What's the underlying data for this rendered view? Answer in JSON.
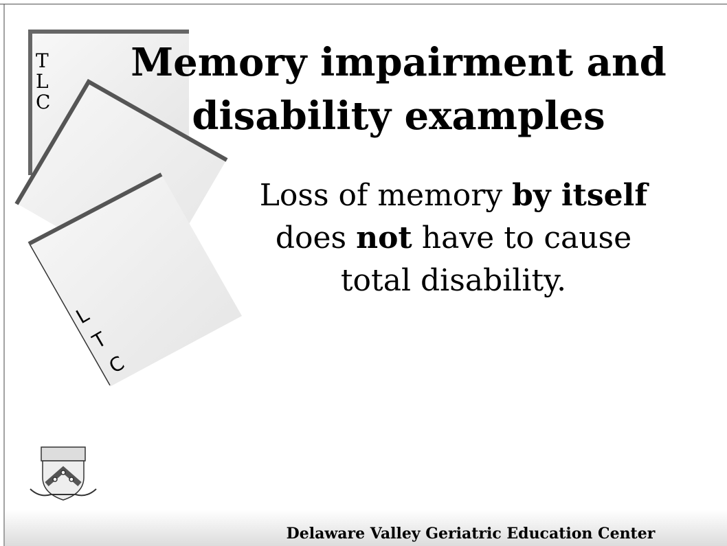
{
  "slide": {
    "title_lines": [
      "Memory impairment and",
      "disability examples"
    ],
    "body_lines": [
      [
        {
          "text": "Loss of memory ",
          "bold": false
        },
        {
          "text": "by itself",
          "bold": true
        }
      ],
      [
        {
          "text": "does ",
          "bold": false
        },
        {
          "text": "not",
          "bold": true
        },
        {
          "text": " have to cause",
          "bold": false
        }
      ],
      [
        {
          "text": "total disability.",
          "bold": false
        }
      ]
    ],
    "card_letters_top": [
      "T",
      "L",
      "C"
    ],
    "card_letters_bottom": [
      "L",
      "T",
      "C"
    ],
    "footer": "Delaware Valley Geriatric Education Center"
  }
}
